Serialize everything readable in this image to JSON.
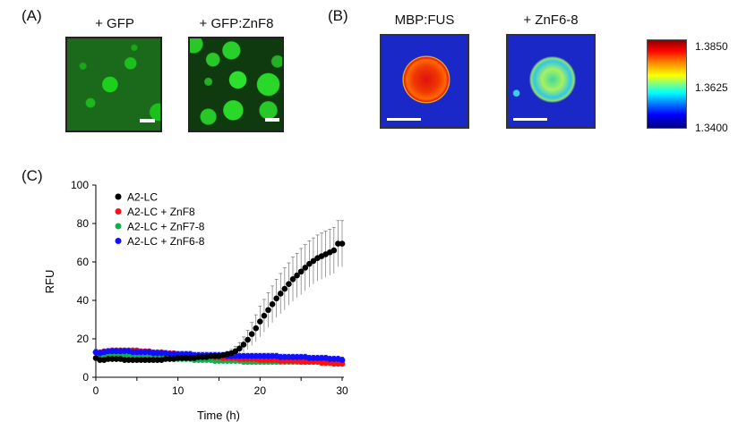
{
  "panels": {
    "a": {
      "label": "(A)",
      "images": [
        {
          "title": "+ GFP"
        },
        {
          "title": "+ GFP:ZnF8"
        }
      ]
    },
    "b": {
      "label": "(B)",
      "images": [
        {
          "title": "MBP:FUS"
        },
        {
          "title": "+ ZnF6-8"
        }
      ],
      "colorbar": {
        "max": "1.3850",
        "mid": "1.3625",
        "min": "1.3400"
      }
    },
    "c": {
      "label": "(C)"
    }
  },
  "chart_data": {
    "type": "scatter",
    "title": "",
    "xlabel": "Time (h)",
    "ylabel": "RFU",
    "xlim": [
      0,
      30
    ],
    "ylim": [
      0,
      100
    ],
    "xticks": [
      "0",
      "10",
      "20",
      "30"
    ],
    "yticks": [
      "0",
      "20",
      "40",
      "60",
      "80",
      "100"
    ],
    "x_start": 0,
    "x_step": 0.5,
    "legend_position": "top-left",
    "series": [
      {
        "name": "A2-LC",
        "color": "#000000",
        "values": [
          10,
          9,
          9,
          9.5,
          9.5,
          9.5,
          9.5,
          9,
          9,
          9,
          9,
          9,
          9,
          9,
          9,
          9,
          9,
          9.5,
          9.5,
          9.5,
          10,
          10,
          10,
          10,
          10,
          10.5,
          10.5,
          10.5,
          11,
          11,
          11,
          11.5,
          12,
          12.5,
          13.5,
          15,
          17,
          19.5,
          22.5,
          25.5,
          29,
          32,
          35,
          38,
          41,
          43.5,
          46,
          48.5,
          51,
          53,
          55,
          57,
          59,
          60.5,
          62,
          63,
          64,
          65,
          66,
          69.5,
          69.5
        ],
        "errors": [
          1,
          1,
          1,
          1,
          1,
          1,
          1,
          1,
          1,
          1,
          1,
          1,
          1,
          1,
          1,
          1,
          1,
          1,
          1,
          1,
          1,
          1,
          1,
          1,
          1,
          1,
          1,
          1,
          1,
          1,
          1,
          1,
          1.5,
          2,
          2.5,
          3,
          4,
          5,
          6,
          7,
          8,
          8.5,
          9,
          9.5,
          10,
          10.5,
          11,
          11,
          11.5,
          11.5,
          12,
          12,
          12,
          12,
          12,
          12,
          12,
          12,
          12,
          12,
          12
        ]
      },
      {
        "name": "A2-LC + ZnF8",
        "color": "#ff1010",
        "values": [
          13,
          13,
          13.5,
          13.5,
          14,
          14,
          14,
          14,
          14,
          14,
          14,
          13.5,
          13.5,
          13.5,
          13,
          13,
          13,
          12.5,
          12.5,
          12.5,
          12,
          12,
          12,
          11.5,
          11.5,
          11.5,
          11,
          11,
          11,
          10.5,
          10.5,
          10,
          10,
          10,
          10,
          9.5,
          9.5,
          9.5,
          9.5,
          9.5,
          9,
          9,
          9,
          9,
          9,
          8.5,
          8.5,
          8.5,
          8.5,
          8.5,
          8,
          8,
          8,
          8,
          8,
          7.5,
          7.5,
          7.5,
          7,
          7,
          7
        ],
        "error": 1
      },
      {
        "name": "A2-LC + ZnF7-8",
        "color": "#10b050",
        "values": [
          13,
          11,
          11.5,
          11.5,
          11.5,
          11.5,
          11.5,
          11,
          11,
          11,
          11,
          10.5,
          10.5,
          10.5,
          10.5,
          10,
          10,
          10,
          10,
          10,
          9.5,
          9.5,
          9.5,
          9.5,
          9,
          9,
          9,
          9,
          9,
          8.5,
          8.5,
          8.5,
          8.5,
          8.5,
          8.5,
          8.5,
          8,
          8,
          8,
          8,
          8,
          8,
          8,
          8,
          8,
          8,
          8,
          8,
          8,
          8,
          8,
          8,
          8,
          8,
          8.5,
          8.5,
          8.5,
          8.5,
          8.5,
          8.5,
          8.5
        ],
        "error": 1.5
      },
      {
        "name": "A2-LC + ZnF6-8",
        "color": "#1010ff",
        "values": [
          13,
          12.5,
          13,
          13.5,
          13.5,
          13.5,
          13.5,
          13.5,
          13.5,
          13,
          13,
          13,
          13,
          13,
          12.5,
          12.5,
          12.5,
          12.5,
          12,
          12,
          12,
          12,
          12,
          12,
          11.5,
          11.5,
          11.5,
          11.5,
          11.5,
          11.5,
          11.5,
          11.5,
          11,
          11,
          11,
          11,
          11,
          11,
          11,
          11,
          11,
          11,
          11,
          11,
          11,
          10.5,
          10.5,
          10.5,
          10.5,
          10.5,
          10.5,
          10.5,
          10,
          10,
          10,
          10,
          10,
          9.5,
          9.5,
          9.5,
          9
        ],
        "error": 1.5
      }
    ]
  }
}
